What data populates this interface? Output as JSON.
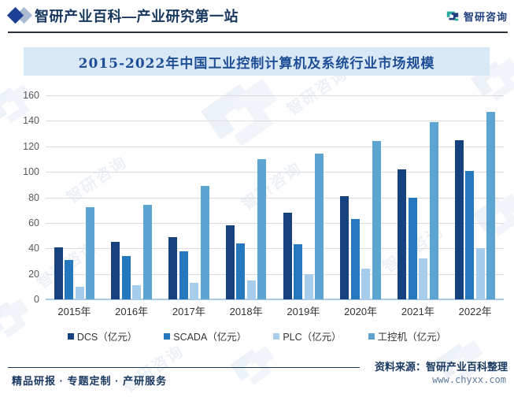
{
  "header": {
    "brand_title": "智研产业百科—产业研究第一站",
    "logo_text": "智研咨询"
  },
  "chart_data": {
    "type": "bar",
    "title": "2015-2022年中国工业控制计算机及系统行业市场规模",
    "categories": [
      "2015年",
      "2016年",
      "2017年",
      "2018年",
      "2019年",
      "2020年",
      "2021年",
      "2022年"
    ],
    "series": [
      {
        "key": "dcs",
        "name": "DCS（亿元）",
        "color": "#16417F",
        "values": [
          41,
          45,
          49,
          58,
          68,
          81,
          102,
          125
        ]
      },
      {
        "key": "scada",
        "name": "SCADA（亿元）",
        "color": "#2678BE",
        "values": [
          31,
          34,
          38,
          44,
          43,
          63,
          80,
          101
        ]
      },
      {
        "key": "plc",
        "name": "PLC（亿元）",
        "color": "#A7CDED",
        "values": [
          10,
          11,
          13,
          15,
          20,
          24,
          32,
          40
        ]
      },
      {
        "key": "ipc",
        "name": "工控机（亿元）",
        "color": "#5CA5D3",
        "values": [
          72,
          74,
          89,
          110,
          114,
          124,
          139,
          147
        ]
      }
    ],
    "ylim": [
      0,
      160
    ],
    "ytick_step": 20,
    "grid": true,
    "legend_position": "bottom"
  },
  "footer": {
    "left": "精品研报 · 专题定制 · 产研服务",
    "source": "资料来源：智研产业百科整理",
    "website": "www.chyxx.com"
  },
  "watermark_text": "智研咨询",
  "colors": {
    "title_band_bg": "#D9E8F6",
    "title_text": "#1F4E96",
    "brand_text": "#17375E",
    "logo_teal": "#2AA7A0",
    "logo_navy": "#1F3E7E"
  }
}
